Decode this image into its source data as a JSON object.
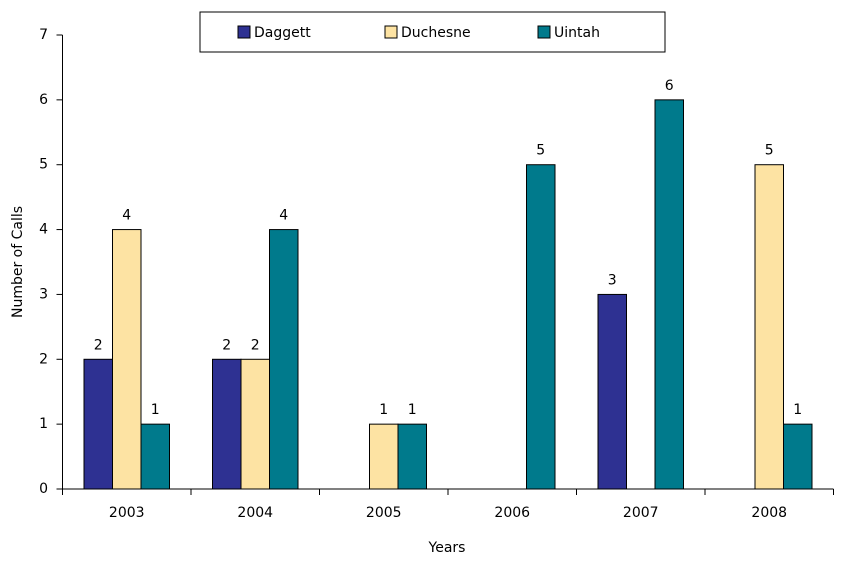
{
  "chart_data": {
    "type": "bar",
    "categories": [
      "2003",
      "2004",
      "2005",
      "2006",
      "2007",
      "2008"
    ],
    "series": [
      {
        "name": "Daggett",
        "color": "#2e3192",
        "values": [
          2,
          2,
          null,
          null,
          3,
          null
        ]
      },
      {
        "name": "Duchesne",
        "color": "#fde3a3",
        "values": [
          4,
          2,
          1,
          null,
          null,
          5
        ]
      },
      {
        "name": "Uintah",
        "color": "#007a8c",
        "values": [
          1,
          4,
          1,
          5,
          6,
          1
        ]
      }
    ],
    "ylim": [
      0,
      7
    ],
    "yticks": [
      0,
      1,
      2,
      3,
      4,
      5,
      6,
      7
    ],
    "ylabel": "Number of Calls",
    "xlabel": "Years",
    "legend": "top"
  }
}
